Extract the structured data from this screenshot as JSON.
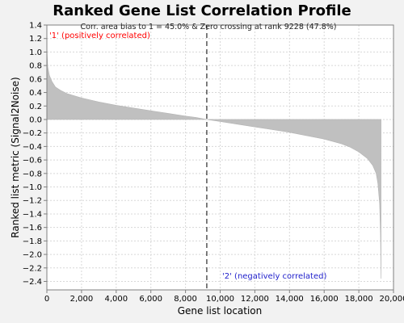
{
  "chart_data": {
    "type": "area",
    "title": "Ranked Gene List Correlation Profile",
    "xlabel": "Gene list location",
    "ylabel": "Ranked list metric (Signal2Noise)",
    "xlim": [
      0,
      20000
    ],
    "ylim": [
      -2.5,
      1.4
    ],
    "grid": true,
    "fill_color": "#c0c0c0",
    "x_ticks": [
      "0",
      "2,000",
      "4,000",
      "6,000",
      "8,000",
      "10,000",
      "12,000",
      "14,000",
      "16,000",
      "18,000",
      "20,000"
    ],
    "y_ticks": [
      "1.4",
      "1.2",
      "1.0",
      "0.8",
      "0.6",
      "0.4",
      "0.2",
      "0.0",
      "-0.2",
      "-0.4",
      "-0.6",
      "-0.8",
      "-1.0",
      "-1.2",
      "-1.4",
      "-1.6",
      "-1.8",
      "-2.0",
      "-2.2",
      "-2.4"
    ],
    "x": [
      0,
      50,
      150,
      300,
      500,
      800,
      1200,
      2000,
      3000,
      4000,
      5000,
      6000,
      7000,
      8000,
      8600,
      9228,
      10000,
      11000,
      12000,
      13000,
      14000,
      15000,
      16000,
      17000,
      17500,
      18000,
      18500,
      18800,
      19000,
      19100,
      19200,
      19250,
      19280
    ],
    "values": [
      1.05,
      0.78,
      0.65,
      0.56,
      0.48,
      0.43,
      0.38,
      0.32,
      0.26,
      0.21,
      0.17,
      0.13,
      0.09,
      0.05,
      0.03,
      0.0,
      -0.03,
      -0.07,
      -0.11,
      -0.15,
      -0.19,
      -0.24,
      -0.29,
      -0.36,
      -0.41,
      -0.48,
      -0.58,
      -0.68,
      -0.8,
      -0.95,
      -1.25,
      -1.7,
      -2.36
    ],
    "zero_crossing_rank": 9228,
    "annotation": "Corr. area bias to 1 = 45.0% & Zero crossing at rank 9228 (47.8%)",
    "positive_label": "'1' (positively correlated)",
    "negative_label": "'2' (negatively correlated)",
    "colors": {
      "positive": "#ff0000",
      "negative": "#2222cc",
      "fill": "#c0c0c0",
      "grid": "#d8d8d8"
    }
  }
}
